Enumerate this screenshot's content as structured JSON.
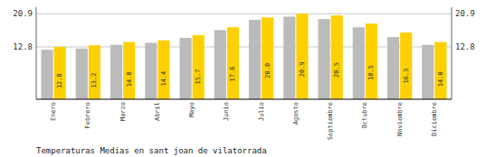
{
  "chart_data": {
    "type": "bar",
    "title": "Temperaturas Medias en sant joan de vilatorrada",
    "categories": [
      "Enero",
      "Febrero",
      "Marzo",
      "Abril",
      "Mayo",
      "Junio",
      "Julio",
      "Agosto",
      "Septiembre",
      "Octubre",
      "Noviembre",
      "Diciembre"
    ],
    "series": [
      {
        "color": "#BBBBBB",
        "values": [
          12.1,
          12.4,
          13.3,
          13.8,
          15.0,
          16.9,
          19.4,
          20.2,
          19.6,
          17.6,
          15.2,
          13.3
        ]
      },
      {
        "color": "#FFD000",
        "data_labels": true,
        "values": [
          12.8,
          13.2,
          14.0,
          14.4,
          15.7,
          17.6,
          20.0,
          20.9,
          20.5,
          18.5,
          16.3,
          14.0
        ],
        "value_labels": [
          "12.8",
          "13.2",
          "14.0",
          "14.4",
          "15.7",
          "17.6",
          "20.0",
          "20.9",
          "20.5",
          "18.5",
          "16.3",
          "14.0"
        ]
      }
    ],
    "ylim": [
      0,
      22.5
    ],
    "yticks": [
      12.8,
      20.9
    ],
    "y2lim": [
      0,
      22.5
    ],
    "y2ticks": [
      12.8,
      20.9
    ],
    "grid": true
  }
}
